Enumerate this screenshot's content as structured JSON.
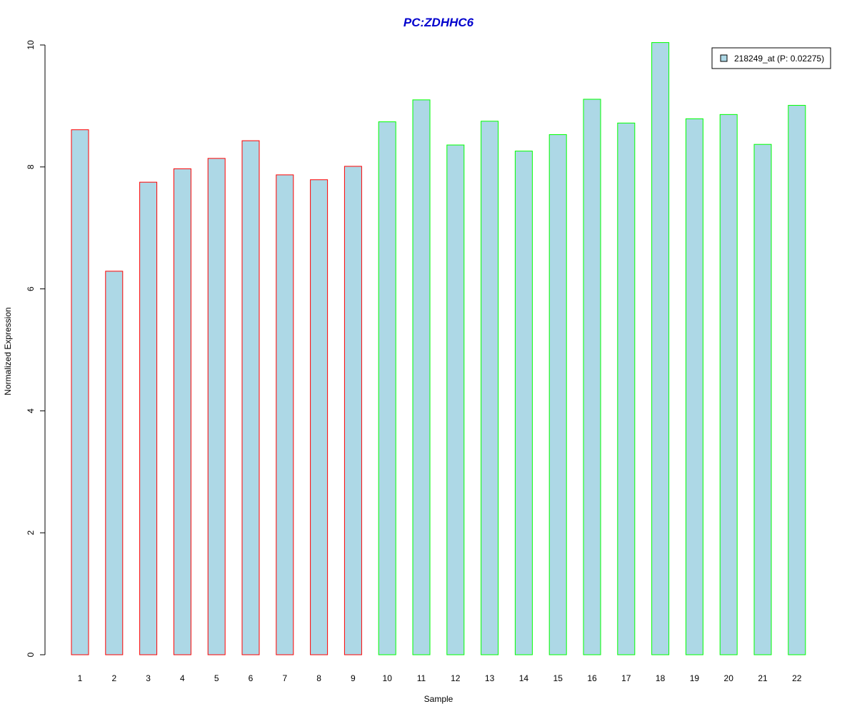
{
  "chart_data": {
    "type": "bar",
    "title": "PC:ZDHHC6",
    "xlabel": "Sample",
    "ylabel": "Normalized Expression",
    "categories": [
      "1",
      "2",
      "3",
      "4",
      "5",
      "6",
      "7",
      "8",
      "9",
      "10",
      "11",
      "12",
      "13",
      "14",
      "15",
      "16",
      "17",
      "18",
      "19",
      "20",
      "21",
      "22"
    ],
    "series": [
      {
        "name": "218249_at (P: 0.02275)",
        "values": [
          8.61,
          6.29,
          7.75,
          7.97,
          8.14,
          8.43,
          7.87,
          7.79,
          8.01,
          8.74,
          9.1,
          8.36,
          8.75,
          8.26,
          8.53,
          9.11,
          8.72,
          10.04,
          8.79,
          8.86,
          8.37,
          9.01
        ]
      }
    ],
    "ylim": [
      0,
      10
    ],
    "yticks": [
      "0",
      "2",
      "4",
      "6",
      "8",
      "10"
    ],
    "legend_position": "top-right",
    "colors": {
      "fill": "#add8e6",
      "group1_border": "#ff0000",
      "group2_border": "#00ff00",
      "title": "#0000cd",
      "axis": "#000000"
    },
    "border_groups": [
      "group1",
      "group1",
      "group1",
      "group1",
      "group1",
      "group1",
      "group1",
      "group1",
      "group1",
      "group2",
      "group2",
      "group2",
      "group2",
      "group2",
      "group2",
      "group2",
      "group2",
      "group2",
      "group2",
      "group2",
      "group2",
      "group2"
    ],
    "grid": false
  }
}
